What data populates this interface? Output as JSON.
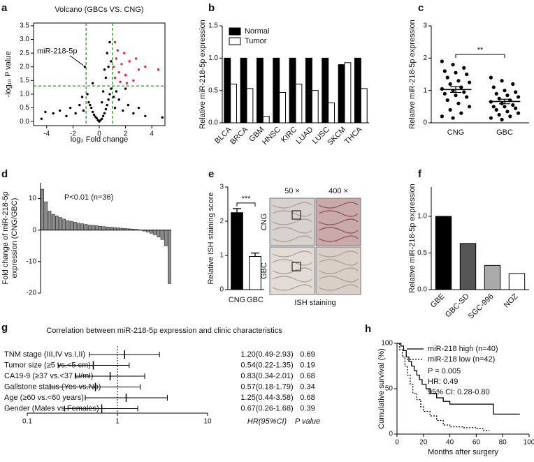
{
  "chart_data": [
    {
      "type": "scatter",
      "label": "a",
      "title": "Volcano (GBCs VS. CNG)",
      "xlabel": "log₂ Fold change",
      "ylabel": "-log₁₀ P value",
      "xlim": [
        -5,
        5
      ],
      "xticks": [
        -4,
        -2,
        0,
        2,
        4
      ],
      "ylim": [
        -0.15,
        3.6
      ],
      "yticks": [
        {
          "value": 0,
          "label": "0.0"
        },
        {
          "value": 0.5,
          "label": "0.5"
        },
        {
          "value": 1,
          "label": "1.0"
        },
        {
          "value": 1.5,
          "label": "1.5"
        },
        {
          "value": 2,
          "label": "2.0"
        },
        {
          "value": 2.5,
          "label": "2.5"
        },
        {
          "value": 3,
          "label": "3.0"
        },
        {
          "value": 3.5,
          "label": "3.5"
        }
      ],
      "thresholds_x": [
        -1,
        1
      ],
      "threshold_y": 1.3,
      "threshold_color": "#3a9a3a",
      "annotation": "miR-218-5p",
      "annotation_point": [
        -1.1,
        2.0
      ],
      "series": [
        {
          "color": "#000000",
          "x": [
            0,
            0.1,
            -0.1,
            0.2,
            -0.2,
            0.3,
            -0.3,
            0.4,
            -0.4,
            0.5,
            -0.5,
            0.6,
            -0.6,
            0.7,
            -0.7,
            0.8,
            -0.8,
            0.9,
            1.2,
            1.5,
            1.8,
            2.2,
            2.6,
            3.0,
            3.5,
            -1.2,
            -1.5,
            -1.8,
            -2.2,
            -2.5,
            -3.0,
            -3.5,
            -4.4,
            -4.1,
            0.5,
            0.7,
            0.6,
            0.8,
            0.9,
            0.4,
            -0.9,
            -0.5,
            -1.1,
            1.3,
            2.0,
            1.1,
            -1.3,
            4.8,
            0.3,
            0.2
          ],
          "y": [
            0,
            0.05,
            0.05,
            0.1,
            0.12,
            0.2,
            0.18,
            0.3,
            0.25,
            0.45,
            0.35,
            0.6,
            0.5,
            0.8,
            0.6,
            1.0,
            0.7,
            1.2,
            0.5,
            0.8,
            0.4,
            0.6,
            0.3,
            0.5,
            0.2,
            0.4,
            0.6,
            0.3,
            0.5,
            0.2,
            0.4,
            0.3,
            0.1,
            0.35,
            1.6,
            2.0,
            2.5,
            2.9,
            2.2,
            1.9,
            1.0,
            1.4,
            2.0,
            1.1,
            1.2,
            0.9,
            0.9,
            0.15,
            1.1,
            0.7
          ]
        },
        {
          "color": "#e8283a",
          "x": [
            1.1,
            1.3,
            1.5,
            1.7,
            1.2,
            2.0,
            2.3,
            2.6,
            3.0,
            3.5,
            4.5,
            1.4,
            1.9,
            2.1,
            1.6,
            2.8,
            1.2
          ],
          "y": [
            2.0,
            2.3,
            1.8,
            2.1,
            1.6,
            1.7,
            2.2,
            1.5,
            1.9,
            2.0,
            1.9,
            2.6,
            2.5,
            1.4,
            1.45,
            2.3,
            2.9
          ]
        }
      ]
    },
    {
      "type": "bar",
      "label": "b",
      "ylabel": "Relative miR-218-5p expression",
      "categories": [
        "BLCA",
        "BRCA",
        "GBM",
        "HNSC",
        "KIRC",
        "LUAD",
        "LUSC",
        "SKCM",
        "THCA"
      ],
      "series": [
        {
          "name": "Normal",
          "color": "#000000",
          "values": [
            1,
            1,
            1,
            1,
            1,
            1,
            1,
            0.9,
            1
          ]
        },
        {
          "name": "Tumor",
          "color": "#ffffff",
          "values": [
            0.6,
            0.53,
            0.1,
            0.47,
            0.6,
            0.5,
            0.31,
            0.93,
            0.53
          ]
        }
      ],
      "ylim": [
        0,
        1.5
      ],
      "yticks": [
        {
          "value": 0,
          "label": "0.0"
        },
        {
          "value": 0.5,
          "label": "0.5"
        },
        {
          "value": 1,
          "label": "1.0"
        },
        {
          "value": 1.5,
          "label": "1.5"
        }
      ]
    },
    {
      "type": "strip",
      "label": "c",
      "ylabel": "Relative miR-218-5p expression",
      "categories": [
        "CNG",
        "GBC"
      ],
      "values": [
        [
          1.9,
          1.8,
          1.7,
          1.6,
          1.55,
          1.5,
          1.4,
          1.3,
          1.25,
          1.2,
          1.1,
          1.05,
          1.0,
          0.95,
          0.9,
          0.85,
          0.8,
          0.7,
          0.6,
          0.5,
          0.4,
          0.3,
          0.2,
          0.15
        ],
        [
          1.4,
          1.3,
          1.2,
          1.1,
          1.0,
          0.95,
          0.9,
          0.85,
          0.8,
          0.75,
          0.7,
          0.65,
          0.6,
          0.55,
          0.5,
          0.5,
          0.45,
          0.4,
          0.35,
          0.3,
          0.25,
          0.2,
          0.15,
          0.1
        ]
      ],
      "means": [
        1.03,
        0.66
      ],
      "sem": [
        0.09,
        0.07
      ],
      "significance": "**",
      "ylim": [
        0,
        3
      ],
      "yticks": [
        0,
        1,
        2,
        3
      ]
    },
    {
      "type": "bar",
      "label": "d",
      "ylabel": [
        "Fold change of miR-218-5p",
        "expression (CNG/GBC)"
      ],
      "annotation": "P<0.01 (n=36)",
      "color": "#8c8c8c",
      "values": [
        13,
        9,
        6,
        5,
        4.5,
        4,
        3.5,
        3,
        2.8,
        2.5,
        2.2,
        2,
        1.8,
        1.6,
        1.5,
        1.4,
        1.2,
        1.1,
        1,
        0.9,
        0.8,
        0.7,
        0.6,
        0.5,
        0.4,
        0.3,
        0.2,
        0.1,
        -0.3,
        -0.6,
        -1,
        -1.5,
        -2.2,
        -3,
        -5,
        -17
      ],
      "ylim": [
        -20,
        15
      ],
      "yticks": [
        -20,
        -10,
        0,
        10
      ]
    },
    {
      "type": "bar",
      "label": "e",
      "ylabel": "Relative ISH staining score",
      "categories": [
        "CNG",
        "GBC"
      ],
      "values": [
        2.25,
        0.97
      ],
      "errors": [
        0.12,
        0.1
      ],
      "colors": [
        "#000000",
        "#ffffff"
      ],
      "significance": "***",
      "ylim": [
        0,
        3
      ],
      "yticks": [
        0,
        1,
        2,
        3
      ],
      "images": {
        "columns": [
          "50 ×",
          "400 ×"
        ],
        "rows": [
          "CNG",
          "GBC"
        ],
        "caption": "ISH staining"
      }
    },
    {
      "type": "bar",
      "label": "f",
      "ylabel": "Relative miR-218-5p expression",
      "categories": [
        "GBE",
        "GBC-SD",
        "SGC-996",
        "NOZ"
      ],
      "values": [
        1.0,
        0.63,
        0.33,
        0.22
      ],
      "colors": [
        "#000000",
        "#555555",
        "#aaaaaa",
        "#ffffff"
      ],
      "ylim": [
        0,
        1.4
      ],
      "yticks": [
        {
          "value": 0,
          "label": "0.0"
        },
        {
          "value": 0.5,
          "label": "0.5"
        },
        {
          "value": 1,
          "label": "1.0"
        }
      ]
    },
    {
      "type": "forest",
      "label": "g",
      "title": "Correlation between miR-218-5p expression and clinic characteristics",
      "rows": [
        "TNM stage (III,IV vs.I,II)",
        "Tumor size (≥5 vs.<5 cm)",
        "CA19-9 (≥37 vs.<37 U/ml)",
        "Gallstone status (Yes vs.No)",
        "Age (≥60 vs.<60 years)",
        "Gender (Males vs.Females)"
      ],
      "hr": [
        1.2,
        0.54,
        0.83,
        0.57,
        1.25,
        0.67
      ],
      "lower": [
        0.49,
        0.22,
        0.34,
        0.18,
        0.44,
        0.26
      ],
      "upper": [
        2.93,
        1.35,
        2.01,
        1.79,
        3.58,
        1.68
      ],
      "ci_labels": [
        "1.20(0.49-2.93)",
        "0.54(0.22-1.35)",
        "0.83(0.34-2.01)",
        "0.57(0.18-1.79)",
        "1.25(0.44-3.58)",
        "0.67(0.26-1.68)"
      ],
      "p_values": [
        0.69,
        0.19,
        0.68,
        0.34,
        0.68,
        0.39
      ],
      "ci_header": "HR(95%CI)",
      "p_header": "P value",
      "log_x": true,
      "xlim": [
        0.1,
        10
      ],
      "xticks": [
        0.1,
        1,
        10
      ],
      "reference": 1
    },
    {
      "type": "line",
      "step": true,
      "label": "h",
      "xlabel": "Months after surgery",
      "ylabel": "Cumulative survival (%)",
      "xlim": [
        0,
        100
      ],
      "xticks": [
        0,
        20,
        40,
        60,
        80,
        100
      ],
      "ylim": [
        0,
        100
      ],
      "yticks": [
        0,
        50,
        100
      ],
      "series": [
        {
          "name": "miR-218 high (n=40)",
          "color": "#000000",
          "dash": false,
          "x": [
            0,
            3,
            5,
            7,
            9,
            11,
            13,
            15,
            17,
            19,
            22,
            25,
            30,
            35,
            40,
            50,
            72,
            73,
            93
          ],
          "values": [
            100,
            97,
            92,
            85,
            80,
            75,
            70,
            65,
            60,
            55,
            50,
            45,
            40,
            36,
            33,
            33,
            33,
            22,
            22
          ]
        },
        {
          "name": "miR-218 low (n=42)",
          "color": "#000000",
          "dash": true,
          "x": [
            0,
            2,
            4,
            6,
            8,
            10,
            12,
            15,
            18,
            20,
            25,
            30,
            35,
            40,
            50,
            60,
            65,
            70
          ],
          "values": [
            100,
            93,
            85,
            75,
            65,
            55,
            45,
            38,
            30,
            25,
            20,
            15,
            10,
            8,
            7,
            6,
            4,
            4
          ]
        }
      ],
      "annotations": [
        "P = 0.005",
        "HR: 0.49",
        "95% CI: 0.28-0.80"
      ]
    }
  ]
}
